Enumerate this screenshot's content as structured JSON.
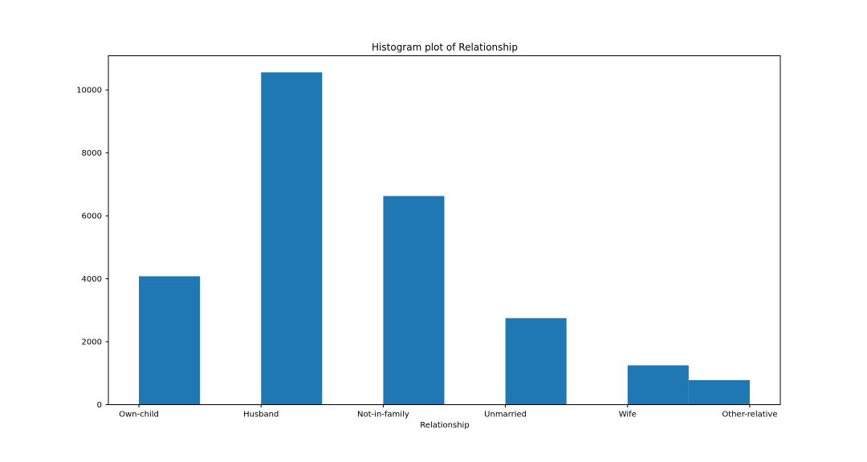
{
  "chart_data": {
    "type": "bar",
    "title": "Histogram plot of Relationship",
    "xlabel": "Relationship",
    "ylabel": "",
    "categories": [
      "Own-child",
      "Husband",
      "Not-in-family",
      "Unmarried",
      "Wife",
      "Other-relative"
    ],
    "values": [
      4080,
      10560,
      6630,
      2750,
      1250,
      780
    ],
    "x_tick_labels": [
      "Own-child",
      "Husband",
      "Not-in-family",
      "Unmarried",
      "Wife",
      "Other-relative"
    ],
    "y_ticks": [
      0,
      2000,
      4000,
      6000,
      8000,
      10000
    ],
    "ylim": [
      0,
      11088
    ],
    "xlim": [
      -0.25,
      5.25
    ],
    "bar_bin_edges": [
      0,
      0.5,
      1,
      1.5,
      2,
      2.5,
      3,
      3.5,
      4,
      4.5,
      5
    ],
    "bar_bin_counts": [
      4080,
      0,
      10560,
      0,
      6630,
      0,
      2750,
      0,
      1250,
      780
    ],
    "grid": false,
    "legend": "none",
    "bar_color": "#1f77b4"
  }
}
